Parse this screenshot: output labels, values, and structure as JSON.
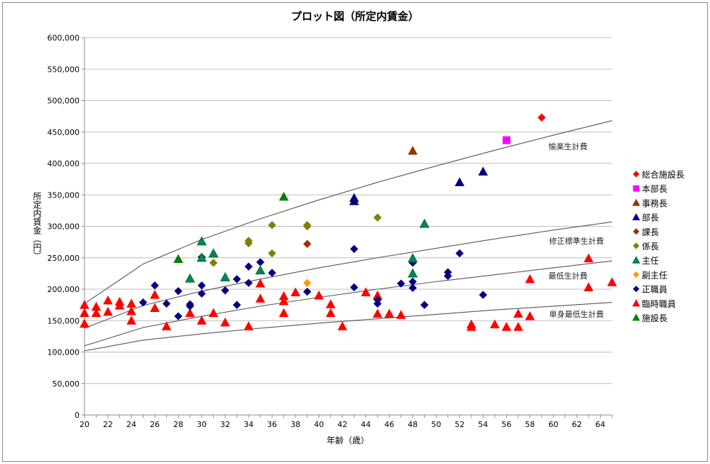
{
  "chart_data": {
    "type": "scatter",
    "title": "プロット図（所定内賃金）",
    "xlabel": "年齢（歳）",
    "ylabel": "所定内賃金（円）",
    "xlim": [
      20,
      65
    ],
    "ylim": [
      0,
      600000
    ],
    "xticks": [
      20,
      22,
      24,
      26,
      28,
      30,
      32,
      34,
      36,
      38,
      40,
      42,
      44,
      46,
      48,
      50,
      52,
      54,
      56,
      58,
      60,
      62,
      64
    ],
    "yticks": [
      0,
      50000,
      100000,
      150000,
      200000,
      250000,
      300000,
      350000,
      400000,
      450000,
      500000,
      550000,
      600000
    ],
    "ytick_labels": [
      "0",
      "50,000",
      "100,000",
      "150,000",
      "200,000",
      "250,000",
      "300,000",
      "350,000",
      "400,000",
      "450,000",
      "500,000",
      "550,000",
      "600,000"
    ],
    "grid": "horizontal",
    "legend_position": "right",
    "series": [
      {
        "name": "総合施設長",
        "marker": "diamond",
        "color": "#FF0000",
        "points": [
          [
            59,
            473000
          ]
        ]
      },
      {
        "name": "本部長",
        "marker": "square",
        "color": "#FF00FF",
        "points": [
          [
            56,
            437000
          ]
        ]
      },
      {
        "name": "事務長",
        "marker": "triangle",
        "color": "#993300",
        "points": [
          [
            48,
            420000
          ]
        ]
      },
      {
        "name": "部長",
        "marker": "triangle",
        "color": "#000080",
        "points": [
          [
            43,
            345000
          ],
          [
            43,
            340000
          ],
          [
            52,
            370000
          ],
          [
            54,
            387000
          ]
        ]
      },
      {
        "name": "課長",
        "marker": "diamond",
        "color": "#993300",
        "points": [
          [
            39,
            272000
          ]
        ]
      },
      {
        "name": "係長",
        "marker": "diamond",
        "color": "#808000",
        "points": [
          [
            34,
            277000
          ],
          [
            34,
            273000
          ],
          [
            36,
            302000
          ],
          [
            39,
            302000
          ],
          [
            39,
            300000
          ],
          [
            31,
            242000
          ],
          [
            36,
            257000
          ],
          [
            45,
            314000
          ]
        ]
      },
      {
        "name": "主任",
        "marker": "triangle",
        "color": "#008080",
        "stroke": "#008000",
        "points": [
          [
            30,
            276000
          ],
          [
            30,
            250000
          ],
          [
            31,
            257000
          ],
          [
            35,
            230000
          ],
          [
            48,
            225000
          ],
          [
            48,
            249000
          ],
          [
            29,
            217000
          ],
          [
            32,
            219000
          ],
          [
            49,
            304000
          ]
        ]
      },
      {
        "name": "副主任",
        "marker": "diamond",
        "color": "#FF9900",
        "points": [
          [
            39,
            210000
          ]
        ]
      },
      {
        "name": "正職員",
        "marker": "diamond",
        "color": "#000080",
        "points": [
          [
            25,
            179000
          ],
          [
            26,
            206000
          ],
          [
            27,
            177000
          ],
          [
            28,
            197000
          ],
          [
            28,
            157000
          ],
          [
            29,
            176000
          ],
          [
            29,
            173000
          ],
          [
            30,
            251000
          ],
          [
            30,
            206000
          ],
          [
            30,
            193000
          ],
          [
            32,
            198000
          ],
          [
            33,
            216000
          ],
          [
            33,
            175000
          ],
          [
            34,
            236000
          ],
          [
            34,
            210000
          ],
          [
            35,
            243000
          ],
          [
            36,
            226000
          ],
          [
            39,
            196000
          ],
          [
            43,
            264000
          ],
          [
            43,
            203000
          ],
          [
            45,
            183000
          ],
          [
            45,
            177000
          ],
          [
            47,
            209000
          ],
          [
            48,
            242000
          ],
          [
            48,
            212000
          ],
          [
            48,
            202000
          ],
          [
            49,
            175000
          ],
          [
            51,
            227000
          ],
          [
            51,
            221000
          ],
          [
            52,
            257000
          ],
          [
            54,
            191000
          ]
        ]
      },
      {
        "name": "臨時職員",
        "marker": "triangle",
        "color": "#FF0000",
        "points": [
          [
            20,
            175000
          ],
          [
            20,
            162000
          ],
          [
            20,
            145000
          ],
          [
            21,
            172000
          ],
          [
            21,
            162000
          ],
          [
            22,
            182000
          ],
          [
            22,
            164000
          ],
          [
            23,
            180000
          ],
          [
            23,
            174000
          ],
          [
            24,
            177000
          ],
          [
            24,
            165000
          ],
          [
            24,
            150000
          ],
          [
            26,
            191000
          ],
          [
            26,
            170000
          ],
          [
            27,
            141000
          ],
          [
            29,
            162000
          ],
          [
            30,
            150000
          ],
          [
            31,
            162000
          ],
          [
            32,
            147000
          ],
          [
            34,
            141000
          ],
          [
            35,
            209000
          ],
          [
            35,
            185000
          ],
          [
            37,
            189000
          ],
          [
            37,
            181000
          ],
          [
            37,
            162000
          ],
          [
            38,
            195000
          ],
          [
            40,
            190000
          ],
          [
            41,
            176000
          ],
          [
            41,
            162000
          ],
          [
            42,
            141000
          ],
          [
            44,
            195000
          ],
          [
            45,
            190000
          ],
          [
            45,
            161000
          ],
          [
            46,
            161000
          ],
          [
            47,
            159000
          ],
          [
            53,
            144000
          ],
          [
            53,
            140000
          ],
          [
            55,
            144000
          ],
          [
            56,
            140000
          ],
          [
            57,
            161000
          ],
          [
            57,
            140000
          ],
          [
            58,
            157000
          ],
          [
            58,
            216000
          ],
          [
            63,
            249000
          ],
          [
            63,
            203000
          ],
          [
            65,
            211000
          ]
        ]
      },
      {
        "name": "施設長",
        "marker": "triangle",
        "color": "#008000",
        "points": [
          [
            37,
            347000
          ],
          [
            28,
            248000
          ]
        ]
      }
    ],
    "curves": [
      {
        "name": "愉楽生計費",
        "x": [
          20,
          25,
          30,
          35,
          40,
          45,
          50,
          55,
          60,
          65
        ],
        "y": [
          177000,
          240000,
          279000,
          312000,
          342000,
          370000,
          396000,
          421000,
          445000,
          468000
        ]
      },
      {
        "name": "修正標準生計費",
        "x": [
          20,
          25,
          30,
          35,
          40,
          45,
          50,
          55,
          60,
          65
        ],
        "y": [
          138000,
          174000,
          197000,
          216000,
          234000,
          250000,
          265000,
          280000,
          294000,
          307000
        ]
      },
      {
        "name": "最低生計費",
        "x": [
          20,
          25,
          30,
          35,
          40,
          45,
          50,
          55,
          60,
          65
        ],
        "y": [
          110000,
          139000,
          157000,
          173000,
          187000,
          200000,
          212000,
          223000,
          234000,
          245000
        ]
      },
      {
        "name": "単身最低生計費",
        "x": [
          20,
          25,
          30,
          35,
          40,
          45,
          50,
          55,
          60,
          65
        ],
        "y": [
          102000,
          119000,
          129000,
          138000,
          146000,
          153000,
          160000,
          167000,
          173000,
          179000
        ]
      }
    ]
  }
}
